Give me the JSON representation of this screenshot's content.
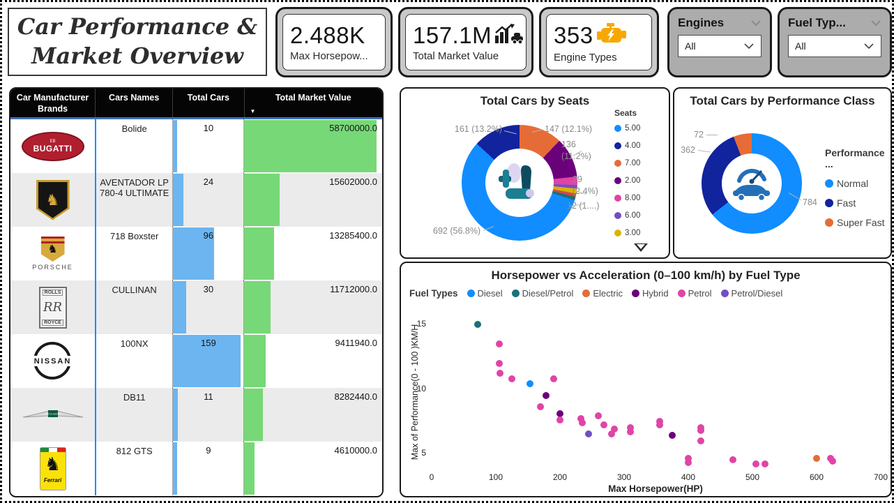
{
  "header": {
    "title_line1": "Car Performance &",
    "title_line2": "Market Overview"
  },
  "kpis": [
    {
      "value": "2.488K",
      "label": "Max Horsepow..."
    },
    {
      "value": "157.1M",
      "label": "Total Market Value",
      "icon": "chart-car-icon"
    },
    {
      "value": "353",
      "label": "Engine Types",
      "icon": "engine-icon"
    }
  ],
  "slicers": [
    {
      "title": "Engines",
      "value": "All"
    },
    {
      "title": "Fuel Typ...",
      "value": "All"
    }
  ],
  "logos": {
    "bugatti": {
      "text": "BUGATTI",
      "mark": "EB"
    },
    "porsche": {
      "text": "PORSCHE"
    },
    "rolls_royce": {
      "top": "ROLLS",
      "monogram": "RR",
      "bottom": "ROYCE"
    },
    "nissan": {
      "text": "NISSAN"
    },
    "aston_martin": {
      "text": "ASTON MARTIN"
    },
    "ferrari": {
      "text": "Ferrari"
    }
  },
  "colors": {
    "blue": "#118DFF",
    "navy": "#12239E",
    "orange": "#E66C37",
    "dark_purple": "#6B007B",
    "pink": "#E044A7",
    "purple": "#744EC2",
    "gold": "#D9B300",
    "red": "#D64550",
    "teal": "#197278",
    "table_bar_blue": "#6cb5f0",
    "table_bar_green": "#77d877",
    "engine_icon_orange": "#F7A800"
  },
  "chart_data": [
    {
      "type": "pie",
      "title": "Total Cars by Seats",
      "legend_title": "Seats",
      "legend_position": "right",
      "slices": [
        {
          "label": "7.00",
          "value": 147,
          "pct": "12.1%",
          "color": "#E66C37"
        },
        {
          "label": "2.00",
          "value": 136,
          "pct": "11.2%",
          "color": "#6B007B"
        },
        {
          "label": "8.00",
          "value": 29,
          "pct": "2.4%",
          "color": "#E044A7"
        },
        {
          "label": "6.00",
          "value": 12,
          "pct": "1.0%",
          "color": "#744EC2"
        },
        {
          "label": "3.00",
          "value": 17,
          "pct": "1.4%",
          "color": "#D9B300"
        },
        {
          "label": "",
          "value": 11,
          "pct": "0.9%",
          "color": "#D64550"
        },
        {
          "label": "",
          "value": 12,
          "pct": "1.0%",
          "color": "#197278"
        },
        {
          "label": "5.00",
          "value": 692,
          "pct": "56.8%",
          "color": "#118DFF"
        },
        {
          "label": "4.00",
          "value": 161,
          "pct": "13.2%",
          "color": "#12239E"
        }
      ],
      "legend": [
        "5.00",
        "4.00",
        "7.00",
        "2.00",
        "8.00",
        "6.00",
        "3.00"
      ],
      "callouts": [
        "161 (13.2%)",
        "147 (12.1%)",
        "136 (11.2%)",
        "29 (2.4%)",
        "12 (1....)",
        "692 (56.8%)"
      ]
    },
    {
      "type": "pie",
      "title": "Total Cars by Performance Class",
      "legend_title": "Performance ...",
      "legend_position": "right",
      "slices": [
        {
          "label": "Normal",
          "value": 784,
          "color": "#118DFF"
        },
        {
          "label": "Fast",
          "value": 362,
          "color": "#12239E"
        },
        {
          "label": "Super Fast",
          "value": 72,
          "color": "#E66C37"
        }
      ],
      "legend": [
        "Normal",
        "Fast",
        "Super Fast"
      ],
      "callouts": [
        "72",
        "362",
        "784"
      ]
    },
    {
      "type": "scatter",
      "title": "Horsepower vs Acceleration (0–100 km/h) by Fuel Type",
      "legend_title": "Fuel Types",
      "legend_position": "top",
      "xlabel": "Max Horsepower(HP)",
      "ylabel": "Max of Performance(0 - 100 )KM/H",
      "x_ticks": [
        0,
        100,
        200,
        300,
        400,
        500,
        600,
        700
      ],
      "y_ticks": [
        15,
        10,
        5
      ],
      "xlim": [
        -25,
        725
      ],
      "ylim": [
        3.3,
        16.2
      ],
      "series": [
        {
          "name": "Diesel",
          "color": "#118DFF",
          "points": [
            [
              153,
              10.4
            ]
          ]
        },
        {
          "name": "Diesel/Petrol",
          "color": "#197278",
          "points": [
            [
              72,
              15.0
            ]
          ]
        },
        {
          "name": "Electric",
          "color": "#E66C37",
          "points": [
            [
              600,
              4.6
            ]
          ]
        },
        {
          "name": "Hybrid",
          "color": "#6B007B",
          "points": [
            [
              178,
              9.5
            ],
            [
              200,
              8.1
            ],
            [
              375,
              6.4
            ]
          ]
        },
        {
          "name": "Petrol",
          "color": "#E044A7",
          "points": [
            [
              105,
              13.5
            ],
            [
              105,
              12.0
            ],
            [
              107,
              11.2
            ],
            [
              125,
              10.8
            ],
            [
              190,
              10.8
            ],
            [
              170,
              8.6
            ],
            [
              200,
              7.6
            ],
            [
              233,
              7.7
            ],
            [
              235,
              7.4
            ],
            [
              260,
              7.9
            ],
            [
              268,
              7.2
            ],
            [
              280,
              6.5
            ],
            [
              285,
              6.9
            ],
            [
              310,
              7.0
            ],
            [
              310,
              6.7
            ],
            [
              355,
              7.5
            ],
            [
              355,
              7.2
            ],
            [
              400,
              4.6
            ],
            [
              400,
              4.3
            ],
            [
              420,
              7.0
            ],
            [
              420,
              6.8
            ],
            [
              420,
              6.0
            ],
            [
              470,
              4.5
            ],
            [
              505,
              4.2
            ],
            [
              520,
              4.2
            ],
            [
              622,
              4.6
            ],
            [
              625,
              4.4
            ]
          ]
        },
        {
          "name": "Petrol/Diesel",
          "color": "#744EC2",
          "points": [
            [
              245,
              6.5
            ]
          ]
        }
      ]
    },
    {
      "type": "table",
      "columns": [
        "Car Manufacturer Brands",
        "Cars Names",
        "Total Cars",
        "Total Market Value"
      ],
      "sort_column": "Total Market Value",
      "sort_direction": "desc",
      "max_total_cars": 159,
      "max_value": 58700000,
      "rows": [
        {
          "logo": "bugatti",
          "car": "Bolide",
          "total_cars": 10,
          "value": 58700000,
          "value_text": "58700000.0"
        },
        {
          "logo": "lamborghini",
          "car": "AVENTADOR LP 780-4 ULTIMATE",
          "total_cars": 24,
          "value": 15602000,
          "value_text": "15602000.0"
        },
        {
          "logo": "porsche",
          "car": "718 Boxster",
          "total_cars": 96,
          "value": 13285400,
          "value_text": "13285400.0"
        },
        {
          "logo": "rolls_royce",
          "car": "CULLINAN",
          "total_cars": 30,
          "value": 11712000,
          "value_text": "11712000.0"
        },
        {
          "logo": "nissan",
          "car": "100NX",
          "total_cars": 159,
          "value": 9411940,
          "value_text": "9411940.0"
        },
        {
          "logo": "aston_martin",
          "car": "DB11",
          "total_cars": 11,
          "value": 8282440,
          "value_text": "8282440.0"
        },
        {
          "logo": "ferrari",
          "car": "812 GTS",
          "total_cars": 9,
          "value": 4610000,
          "value_text": "4610000.0"
        }
      ]
    }
  ]
}
